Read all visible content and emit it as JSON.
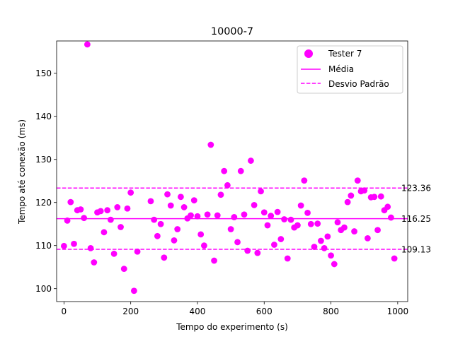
{
  "chart_data": {
    "type": "scatter",
    "title": "10000-7",
    "xlabel": "Tempo do experimento (s)",
    "ylabel": "Tempo até conexão (ms)",
    "xlim": [
      -22,
      1030
    ],
    "ylim": [
      97,
      157.5
    ],
    "xticks": [
      0,
      200,
      400,
      600,
      800,
      1000
    ],
    "yticks": [
      100,
      110,
      120,
      130,
      140,
      150
    ],
    "grid": false,
    "legend_position": "top-right",
    "colors": {
      "series": "#ff00ff",
      "axis": "#000000"
    },
    "series": [
      {
        "name": "Tester 7",
        "x": [
          0,
          10,
          20,
          30,
          40,
          50,
          60,
          70,
          80,
          90,
          100,
          110,
          120,
          130,
          140,
          150,
          160,
          170,
          180,
          190,
          200,
          210,
          220,
          260,
          270,
          280,
          290,
          300,
          310,
          320,
          330,
          340,
          350,
          360,
          370,
          380,
          390,
          400,
          410,
          420,
          430,
          440,
          450,
          460,
          470,
          480,
          490,
          500,
          510,
          520,
          530,
          540,
          550,
          560,
          570,
          580,
          590,
          600,
          610,
          620,
          630,
          640,
          650,
          660,
          670,
          680,
          690,
          700,
          710,
          720,
          730,
          740,
          750,
          760,
          770,
          780,
          790,
          800,
          810,
          820,
          830,
          840,
          850,
          860,
          870,
          880,
          890,
          900,
          910,
          920,
          930,
          940,
          950,
          960,
          970,
          980,
          990
        ],
        "y": [
          109.9,
          115.8,
          120.1,
          110.4,
          118.2,
          118.4,
          116.4,
          156.7,
          109.4,
          106.1,
          117.7,
          118.0,
          113.1,
          118.2,
          116.0,
          108.1,
          118.9,
          114.3,
          104.6,
          118.6,
          122.3,
          99.5,
          108.6,
          120.3,
          116.0,
          112.2,
          115.0,
          107.2,
          121.9,
          119.3,
          111.2,
          113.8,
          121.3,
          118.9,
          116.3,
          117.0,
          120.5,
          116.8,
          112.6,
          110.0,
          117.2,
          133.4,
          106.5,
          117.0,
          121.8,
          127.3,
          124.0,
          113.8,
          116.6,
          110.8,
          127.3,
          117.2,
          108.8,
          129.7,
          119.4,
          108.3,
          122.6,
          117.7,
          114.7,
          116.9,
          110.2,
          117.8,
          111.5,
          116.1,
          107.0,
          116.0,
          114.2,
          114.7,
          119.3,
          125.1,
          117.6,
          115.0,
          109.7,
          115.1,
          111.1,
          109.4,
          112.1,
          107.7,
          105.7,
          115.4,
          113.6,
          114.2,
          120.1,
          121.6,
          113.3,
          125.1,
          122.6,
          122.8,
          111.7,
          121.2,
          121.3,
          113.6,
          121.4,
          118.2,
          119.0,
          116.5,
          107.0
        ]
      }
    ],
    "reference_lines": [
      {
        "name": "Média",
        "value": 116.25,
        "label": "116.25",
        "style": "solid"
      },
      {
        "name": "Desvio Padrão",
        "value": 123.36,
        "label": "123.36",
        "style": "dashed"
      },
      {
        "name": "Desvio Padrão",
        "value": 109.13,
        "label": "109.13",
        "style": "dashed"
      }
    ]
  }
}
